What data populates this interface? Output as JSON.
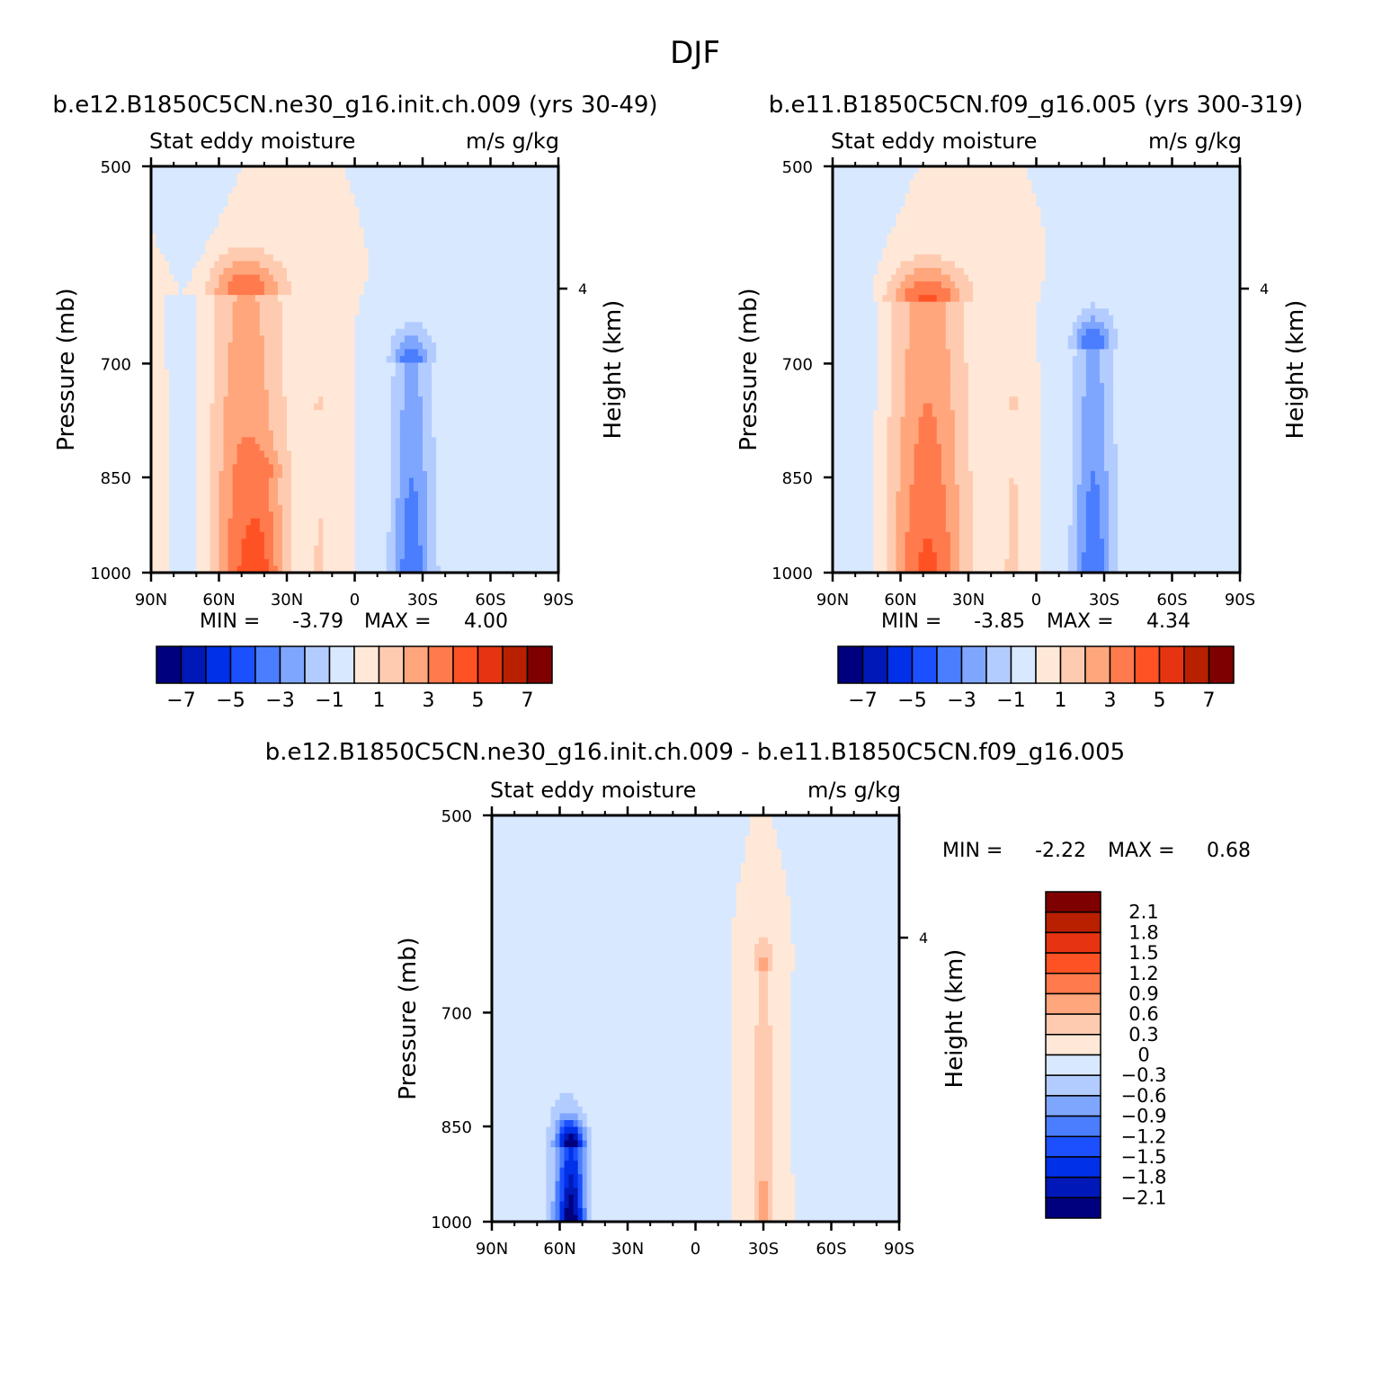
{
  "figure": {
    "title": "DJF"
  },
  "colors": {
    "main_levels": [
      -7,
      -6,
      -5,
      -4,
      -3,
      -2,
      -1,
      0,
      1,
      2,
      3,
      4,
      5,
      6,
      7
    ],
    "main_colors": [
      "#00007f",
      "#0018b8",
      "#0030e8",
      "#1c50ff",
      "#4a7eff",
      "#7fa6ff",
      "#b3ccff",
      "#d8e8ff",
      "#ffe8d8",
      "#ffcbb0",
      "#ffa67d",
      "#ff7a4c",
      "#ff5224",
      "#e63412",
      "#b82000",
      "#7f0000"
    ],
    "diff_levels": [
      -2.1,
      -1.8,
      -1.5,
      -1.2,
      -0.9,
      -0.6,
      -0.3,
      0,
      0.3,
      0.6,
      0.9,
      1.2,
      1.5,
      1.8,
      2.1
    ],
    "diff_colors": [
      "#00007f",
      "#0018b8",
      "#0030e8",
      "#1c50ff",
      "#4a7eff",
      "#7fa6ff",
      "#b3ccff",
      "#d8e8ff",
      "#ffe8d8",
      "#ffcbb0",
      "#ffa67d",
      "#ff7a4c",
      "#ff5224",
      "#e63412",
      "#b82000",
      "#7f0000"
    ]
  },
  "chart_data": [
    {
      "type": "heatmap",
      "title": "b.e12.B1850C5CN.ne30_g16.init.ch.009 (yrs 30-49)",
      "left_subtitle": "Stat eddy moisture",
      "right_subtitle": "m/s g/kg",
      "xlabel": "",
      "ylabel": "Pressure (mb)",
      "ylabel_right": "Height (km)",
      "xticks": [
        90,
        60,
        30,
        0,
        -30,
        -60,
        -90
      ],
      "xtick_labels": [
        "90N",
        "60N",
        "30N",
        "0",
        "30S",
        "60S",
        "90S"
      ],
      "yticks": [
        500,
        700,
        850,
        1000
      ],
      "yticks_right": [
        {
          "value": 616,
          "label": "4"
        }
      ],
      "xlim": [
        90,
        -90
      ],
      "ylim": [
        1000,
        500
      ],
      "min_label": "MIN =",
      "min": "-3.79",
      "max_label": "MAX =",
      "max": "4.00",
      "colorbar_labels": [
        "-7",
        "-5",
        "-3",
        "-1",
        "1",
        "3",
        "5",
        "7"
      ],
      "features": [
        {
          "lat": 48,
          "p_top": 620,
          "p_bot": 1000,
          "width": 17,
          "peak": 3.9
        },
        {
          "lat": 40,
          "p_top": 850,
          "p_bot": 1000,
          "width": 9,
          "peak": 1.2
        },
        {
          "lat": 15,
          "p_top": 760,
          "p_bot": 1000,
          "width": 5,
          "peak": 1.1
        },
        {
          "lat": 70,
          "p_top": 500,
          "p_bot": 1000,
          "width": 8,
          "peak": -0.7
        },
        {
          "lat": -25,
          "p_top": 700,
          "p_bot": 1000,
          "width": 9,
          "peak": -3.79
        },
        {
          "lat": -50,
          "p_top": 500,
          "p_bot": 1000,
          "width": 15,
          "peak": -0.8
        }
      ]
    },
    {
      "type": "heatmap",
      "title": "b.e11.B1850C5CN.f09_g16.005 (yrs 300-319)",
      "left_subtitle": "Stat eddy moisture",
      "right_subtitle": "m/s g/kg",
      "xlabel": "",
      "ylabel": "Pressure (mb)",
      "ylabel_right": "Height (km)",
      "xticks": [
        90,
        60,
        30,
        0,
        -30,
        -60,
        -90
      ],
      "xtick_labels": [
        "90N",
        "60N",
        "30N",
        "0",
        "30S",
        "60S",
        "90S"
      ],
      "yticks": [
        500,
        700,
        850,
        1000
      ],
      "yticks_right": [
        {
          "value": 616,
          "label": "4"
        }
      ],
      "xlim": [
        90,
        -90
      ],
      "ylim": [
        1000,
        500
      ],
      "min_label": "MIN =",
      "min": "-3.85",
      "max_label": "MAX =",
      "max": "4.34",
      "colorbar_labels": [
        "-7",
        "-5",
        "-3",
        "-1",
        "1",
        "3",
        "5",
        "7"
      ],
      "features": [
        {
          "lat": 48,
          "p_top": 630,
          "p_bot": 1000,
          "width": 17,
          "peak": 4.3
        },
        {
          "lat": 10,
          "p_top": 760,
          "p_bot": 1000,
          "width": 5,
          "peak": 1.4
        },
        {
          "lat": 75,
          "p_top": 500,
          "p_bot": 1000,
          "width": 8,
          "peak": -0.8
        },
        {
          "lat": -25,
          "p_top": 680,
          "p_bot": 1000,
          "width": 9,
          "peak": -3.85
        },
        {
          "lat": -52,
          "p_top": 500,
          "p_bot": 1000,
          "width": 15,
          "peak": -0.8
        }
      ]
    },
    {
      "type": "heatmap",
      "title": "b.e12.B1850C5CN.ne30_g16.init.ch.009 - b.e11.B1850C5CN.f09_g16.005",
      "left_subtitle": "Stat eddy moisture",
      "right_subtitle": "m/s g/kg",
      "xlabel": "",
      "ylabel": "Pressure (mb)",
      "ylabel_right": "Height (km)",
      "xticks": [
        90,
        60,
        30,
        0,
        -30,
        -60,
        -90
      ],
      "xtick_labels": [
        "90N",
        "60N",
        "30N",
        "0",
        "30S",
        "60S",
        "90S"
      ],
      "yticks": [
        500,
        700,
        850,
        1000
      ],
      "yticks_right": [
        {
          "value": 616,
          "label": "4"
        }
      ],
      "xlim": [
        90,
        -90
      ],
      "ylim": [
        1000,
        500
      ],
      "min_label": "MIN =",
      "min": "-2.22",
      "max_label": "MAX =",
      "max": "0.68",
      "colorbar_labels": [
        "2.1",
        "1.8",
        "1.5",
        "1.2",
        "0.9",
        "0.6",
        "0.3",
        "0",
        "-0.3",
        "-0.6",
        "-0.9",
        "-1.2",
        "-1.5",
        "-1.8",
        "-2.1"
      ],
      "features": [
        {
          "lat": 60,
          "p_top": 500,
          "p_bot": 1000,
          "width": 14,
          "peak": -0.3
        },
        {
          "lat": 55,
          "p_top": 880,
          "p_bot": 1000,
          "width": 6,
          "peak": -2.22
        },
        {
          "lat": 10,
          "p_top": 560,
          "p_bot": 1000,
          "width": 10,
          "peak": -0.3
        },
        {
          "lat": -30,
          "p_top": 650,
          "p_bot": 1000,
          "width": 5,
          "peak": 0.68
        },
        {
          "lat": -65,
          "p_top": 500,
          "p_bot": 1000,
          "width": 9,
          "peak": -0.3
        }
      ]
    }
  ]
}
